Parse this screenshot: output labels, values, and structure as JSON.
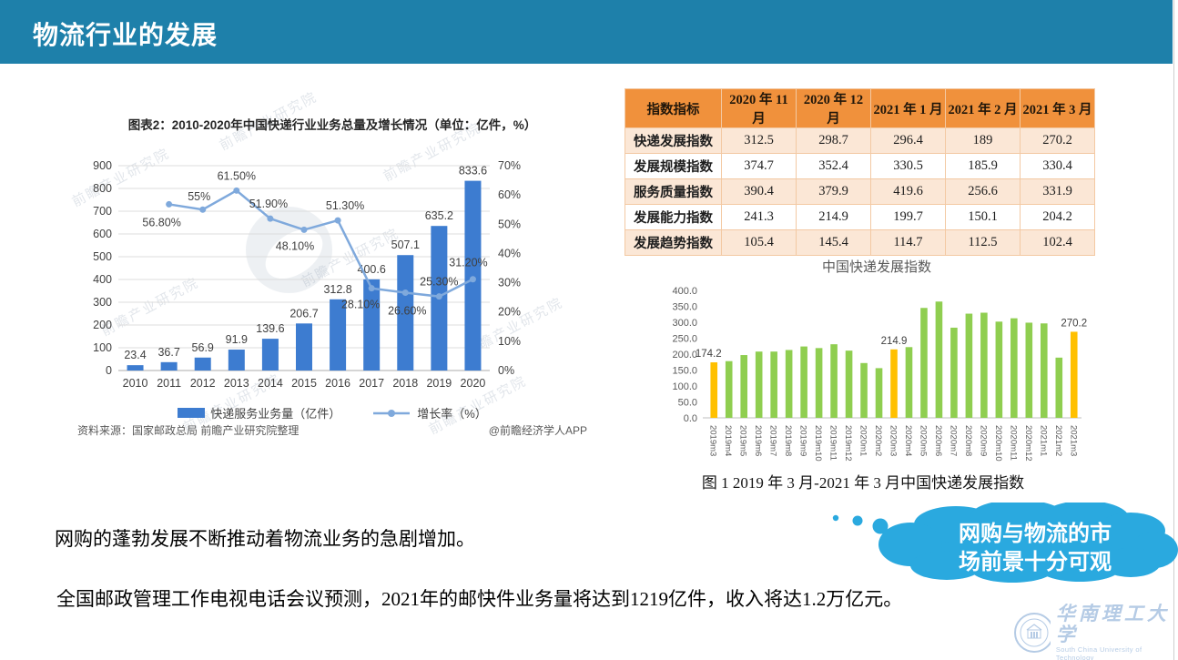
{
  "slide": {
    "title": "物流行业的发展",
    "header_color": "#1E80AA"
  },
  "texts": {
    "paragraph1": "网购的蓬勃发展不断推动着物流业务的急剧增加。",
    "paragraph2": "全国邮政管理工作电视电话会议预测，2021年的邮快件业务量将达到1219亿件，收入将达1.2万亿元。"
  },
  "callout": {
    "line1": "网购与物流的市",
    "line2": "场前景十分可观",
    "color": "#2AA9DF"
  },
  "table": {
    "header": [
      "指数指标",
      "2020 年 11 月",
      "2020 年 12 月",
      "2021 年 1 月",
      "2021 年 2 月",
      "2021 年 3 月"
    ],
    "rows": [
      [
        "快递发展指数",
        "312.5",
        "298.7",
        "296.4",
        "189",
        "270.2"
      ],
      [
        "发展规模指数",
        "374.7",
        "352.4",
        "330.5",
        "185.9",
        "330.4"
      ],
      [
        "服务质量指数",
        "390.4",
        "379.9",
        "419.6",
        "256.6",
        "331.9"
      ],
      [
        "发展能力指数",
        "241.3",
        "214.9",
        "199.7",
        "150.1",
        "204.2"
      ],
      [
        "发展趋势指数",
        "105.4",
        "145.4",
        "114.7",
        "112.5",
        "102.4"
      ]
    ],
    "header_bg": "#F0913C",
    "row_alt_bg": "#FBE7D6",
    "border_color": "#F3C9A3"
  },
  "chart_data": [
    {
      "id": "express-volume-growth",
      "type": "bar+line",
      "title": "图表2：2010-2020年中国快递行业业务总量及增长情况（单位：亿件，%）",
      "categories": [
        "2010",
        "2011",
        "2012",
        "2013",
        "2014",
        "2015",
        "2016",
        "2017",
        "2018",
        "2019",
        "2020"
      ],
      "series": [
        {
          "name": "快递服务业务量（亿件）",
          "type": "bar",
          "color": "#3D7CD0",
          "values": [
            23.4,
            36.7,
            56.9,
            91.9,
            139.6,
            206.7,
            312.8,
            400.6,
            507.1,
            635.2,
            833.6
          ]
        },
        {
          "name": "增长率（%）",
          "type": "line",
          "color": "#7FA9DC",
          "values": [
            null,
            56.8,
            55,
            61.5,
            51.9,
            48.1,
            51.3,
            28.1,
            26.6,
            25.3,
            31.2
          ],
          "labels": [
            null,
            "56.80%",
            "55%",
            "61.50%",
            "51.90%",
            "48.10%",
            "51.30%",
            "28.10%",
            "26.60%",
            "25.30%",
            "31.20%"
          ]
        }
      ],
      "ylim_left": [
        0,
        900
      ],
      "ytick_step_left": 100,
      "yticks_left": [
        "0",
        "100",
        "200",
        "300",
        "400",
        "500",
        "600",
        "700",
        "800",
        "900"
      ],
      "ylim_right": [
        0,
        70
      ],
      "ytick_step_right": 10,
      "yticks_right": [
        "0%",
        "10%",
        "20%",
        "30%",
        "40%",
        "50%",
        "60%",
        "70%"
      ],
      "grid": true,
      "legend_position": "bottom",
      "source_left": "资料来源：国家邮政总局 前瞻产业研究院整理",
      "source_right": "@前瞻经济学人APP",
      "watermark": "前瞻产业研究院"
    },
    {
      "id": "china-express-development-index",
      "type": "bar",
      "title": "中国快递发展指数",
      "caption": "图 1 2019 年 3 月-2021 年 3 月中国快递发展指数",
      "categories": [
        "2019m3",
        "2019m4",
        "2019m5",
        "2019m6",
        "2019m7",
        "2019m8",
        "2019m9",
        "2019m10",
        "2019m11",
        "2019m12",
        "2020m1",
        "2020m2",
        "2020m3",
        "2020m4",
        "2020m5",
        "2020m6",
        "2020m7",
        "2020m8",
        "2020m9",
        "2020m10",
        "2020m11",
        "2020m12",
        "2021m1",
        "2021m2",
        "2021m3"
      ],
      "values": [
        174.2,
        178,
        197,
        208,
        208,
        213,
        224,
        219,
        231,
        211,
        172,
        156,
        214.9,
        222,
        345,
        365,
        283,
        327,
        330,
        302,
        312.5,
        298.7,
        296.4,
        189,
        270.2
      ],
      "highlight_indices": [
        0,
        12,
        24
      ],
      "point_labels": {
        "0": "174.2",
        "12": "214.9",
        "24": "270.2"
      },
      "bar_color": "#8FCE50",
      "highlight_color": "#FFC000",
      "ylim": [
        0,
        400
      ],
      "ytick_step": 50,
      "yticks": [
        "0.0",
        "50.0",
        "100.0",
        "150.0",
        "200.0",
        "250.0",
        "300.0",
        "350.0",
        "400.0"
      ],
      "grid": false,
      "legend_position": "none"
    }
  ],
  "logo": {
    "name_cn": "华南理工大学",
    "name_en": "South China University of Technology"
  }
}
